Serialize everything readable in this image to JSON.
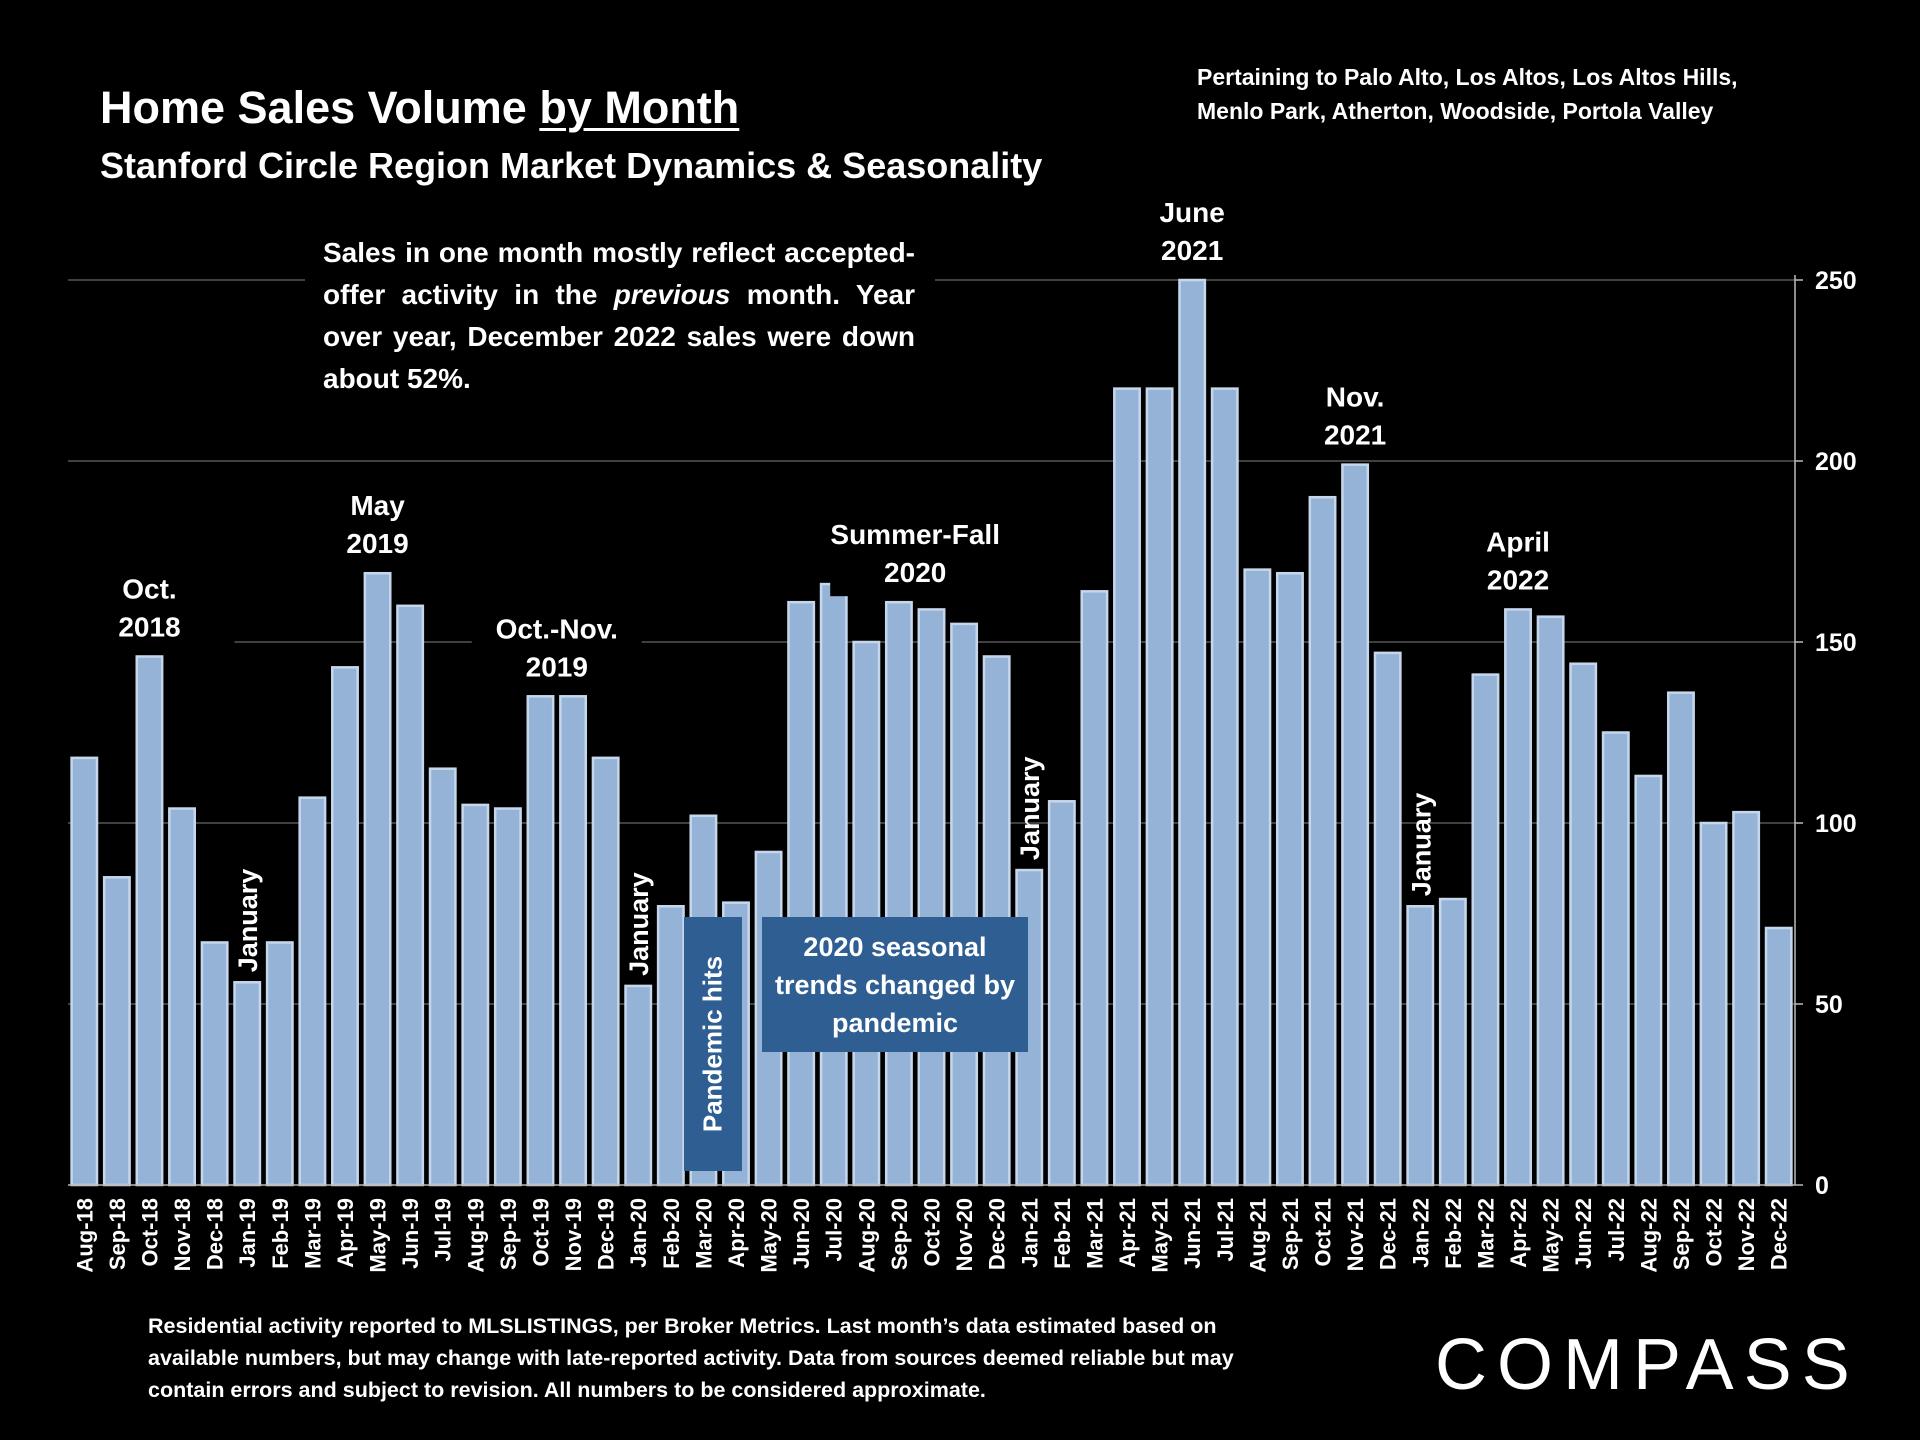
{
  "header": {
    "title_prefix": "Home Sales Volume ",
    "title_underlined": "by Month",
    "subtitle": "Stanford Circle Region Market Dynamics & Seasonality",
    "scope_line1": "Pertaining to Palo Alto, Los Altos, Los Altos Hills,",
    "scope_line2": "Menlo Park, Atherton, Woodside, Portola Valley"
  },
  "note": {
    "pre": "Sales in one month mostly reflect accepted-offer activity in the ",
    "emph": "previous",
    "post": " month. Year over year, December 2022 sales were down about 52%."
  },
  "callouts": {
    "seasonal": "2020 seasonal trends changed by pandemic",
    "pandemic": "Pandemic hits"
  },
  "footnote": "Residential activity reported to MLSLISTINGS, per Broker Metrics. Last month’s data estimated based on available numbers, but may change with late-reported activity. Data from sources deemed reliable but may contain errors and subject to revision. All numbers to be considered approximate.",
  "logo": "COMPASS",
  "colors": {
    "background": "#000000",
    "bar_fill": "#95B3D7",
    "bar_edge": "#C7D7EB",
    "callout": "#2E5E92",
    "grid": "#7F7F7F"
  },
  "chart_data": {
    "type": "bar",
    "title": "Home Sales Volume by Month",
    "xlabel": "",
    "ylabel": "",
    "ylim": [
      0,
      250
    ],
    "yticks": [
      0,
      50,
      100,
      150,
      200,
      250
    ],
    "y_axis_side": "right",
    "grid": true,
    "categories": [
      "Aug-18",
      "Sep-18",
      "Oct-18",
      "Nov-18",
      "Dec-18",
      "Jan-19",
      "Feb-19",
      "Mar-19",
      "Apr-19",
      "May-19",
      "Jun-19",
      "Jul-19",
      "Aug-19",
      "Sep-19",
      "Oct-19",
      "Nov-19",
      "Dec-19",
      "Jan-20",
      "Feb-20",
      "Mar-20",
      "Apr-20",
      "May-20",
      "Jun-20",
      "Jul-20",
      "Aug-20",
      "Sep-20",
      "Oct-20",
      "Nov-20",
      "Dec-20",
      "Jan-21",
      "Feb-21",
      "Mar-21",
      "Apr-21",
      "May-21",
      "Jun-21",
      "Jul-21",
      "Aug-21",
      "Sep-21",
      "Oct-21",
      "Nov-21",
      "Dec-21",
      "Jan-22",
      "Feb-22",
      "Mar-22",
      "Apr-22",
      "May-22",
      "Jun-22",
      "Jul-22",
      "Aug-22",
      "Sep-22",
      "Oct-22",
      "Nov-22",
      "Dec-22"
    ],
    "values": [
      118,
      85,
      146,
      104,
      67,
      56,
      67,
      107,
      143,
      169,
      160,
      115,
      105,
      104,
      135,
      135,
      118,
      55,
      77,
      102,
      78,
      92,
      161,
      166,
      150,
      161,
      159,
      155,
      146,
      87,
      106,
      164,
      220,
      220,
      250,
      220,
      170,
      169,
      190,
      199,
      147,
      77,
      79,
      141,
      159,
      157,
      144,
      125,
      113,
      136,
      100,
      103,
      71
    ],
    "annotations": [
      {
        "lines": [
          "Oct.",
          "2018"
        ],
        "index": 2,
        "style": "horizontal"
      },
      {
        "lines": [
          "May",
          "2019"
        ],
        "index": 9,
        "style": "horizontal"
      },
      {
        "lines": [
          "Oct.-Nov.",
          "2019"
        ],
        "index": 14.5,
        "style": "horizontal"
      },
      {
        "lines": [
          "Summer-Fall",
          "2020"
        ],
        "index": 25.5,
        "style": "horizontal"
      },
      {
        "lines": [
          "June",
          "2021"
        ],
        "index": 34,
        "style": "horizontal"
      },
      {
        "lines": [
          "Nov.",
          "2021"
        ],
        "index": 39,
        "style": "horizontal"
      },
      {
        "lines": [
          "April",
          "2022"
        ],
        "index": 44,
        "style": "horizontal"
      },
      {
        "lines": [
          "January"
        ],
        "index": 5,
        "style": "vertical"
      },
      {
        "lines": [
          "January"
        ],
        "index": 17,
        "style": "vertical"
      },
      {
        "lines": [
          "January"
        ],
        "index": 29,
        "style": "vertical"
      },
      {
        "lines": [
          "January"
        ],
        "index": 41,
        "style": "vertical"
      }
    ]
  }
}
